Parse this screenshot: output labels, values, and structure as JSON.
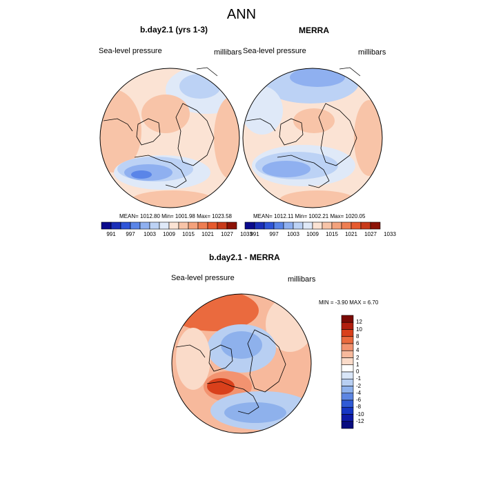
{
  "page": {
    "title": "ANN"
  },
  "panels": [
    {
      "title": "b.day2.1 (yrs 1-3)",
      "variable": "Sea-level pressure",
      "units": "millibars",
      "stats": "MEAN= 1012.80  Min= 1001.98  Max= 1023.58"
    },
    {
      "title": "MERRA",
      "variable": "Sea-level pressure",
      "units": "millibars",
      "stats": "MEAN= 1012.11  Min= 1002.21  Max= 1020.05"
    }
  ],
  "colorbar_h": {
    "colors": [
      "#0a0a8c",
      "#1a2fb8",
      "#2f55d8",
      "#5a85e8",
      "#8fb0f0",
      "#bcd2f5",
      "#dfe9f8",
      "#fbe3d4",
      "#f8c4a8",
      "#f4a27c",
      "#ee7e52",
      "#e65a2e",
      "#c83a1a",
      "#8c1206"
    ],
    "tick_labels": [
      "991",
      "997",
      "1003",
      "1009",
      "1015",
      "1021",
      "1027",
      "1033"
    ]
  },
  "diff_panel": {
    "title": "b.day2.1 - MERRA",
    "variable": "Sea-level pressure",
    "units": "millibars",
    "minmax": "MIN =  -3.90 MAX =   6.70"
  },
  "colorbar_v": {
    "colors": [
      "#7a0a05",
      "#b11e0e",
      "#d9401b",
      "#ea6a3e",
      "#f29370",
      "#f7b99c",
      "#fadbc9",
      "#ffffff",
      "#d9e6f8",
      "#b8cff2",
      "#8eb1ec",
      "#5d86e3",
      "#2f5ad6",
      "#1636c4",
      "#0e1aa6",
      "#080c80"
    ],
    "tick_labels": [
      "12",
      "10",
      "8",
      "6",
      "4",
      "2",
      "1",
      "0",
      "-1",
      "-2",
      "-4",
      "-6",
      "-8",
      "-10",
      "-12"
    ]
  }
}
